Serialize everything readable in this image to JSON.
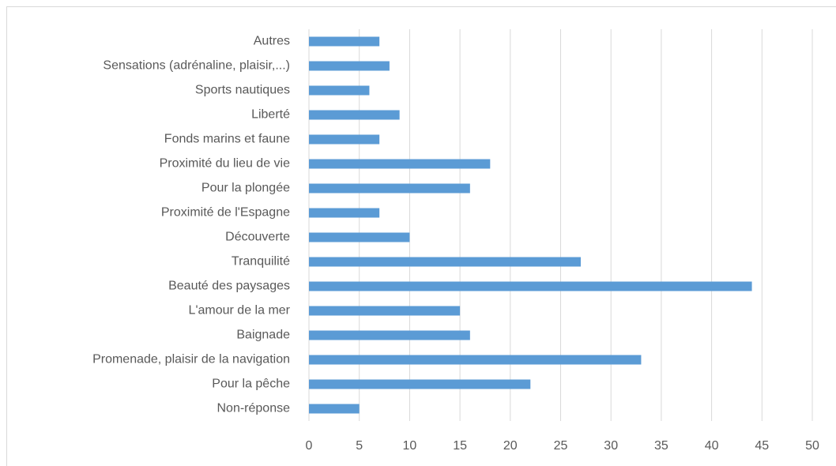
{
  "chart_data": {
    "type": "barh",
    "categories": [
      "Autres",
      "Sensations (adrénaline, plaisir,...)",
      "Sports nautiques",
      "Liberté",
      "Fonds marins et faune",
      "Proximité du lieu de vie",
      "Pour la plongée",
      "Proximité de l'Espagne",
      "Découverte",
      "Tranquilité",
      "Beauté des paysages",
      "L'amour de la mer",
      "Baignade",
      "Promenade, plaisir de la navigation",
      "Pour la pêche",
      "Non-réponse"
    ],
    "values": [
      7,
      8,
      6,
      9,
      7,
      18,
      16,
      7,
      10,
      27,
      44,
      15,
      16,
      33,
      22,
      5
    ],
    "color": "#5b9bd5",
    "xlim": [
      0,
      50
    ],
    "xticks": [
      0,
      5,
      10,
      15,
      20,
      25,
      30,
      35,
      40,
      45,
      50
    ],
    "grid": true
  }
}
